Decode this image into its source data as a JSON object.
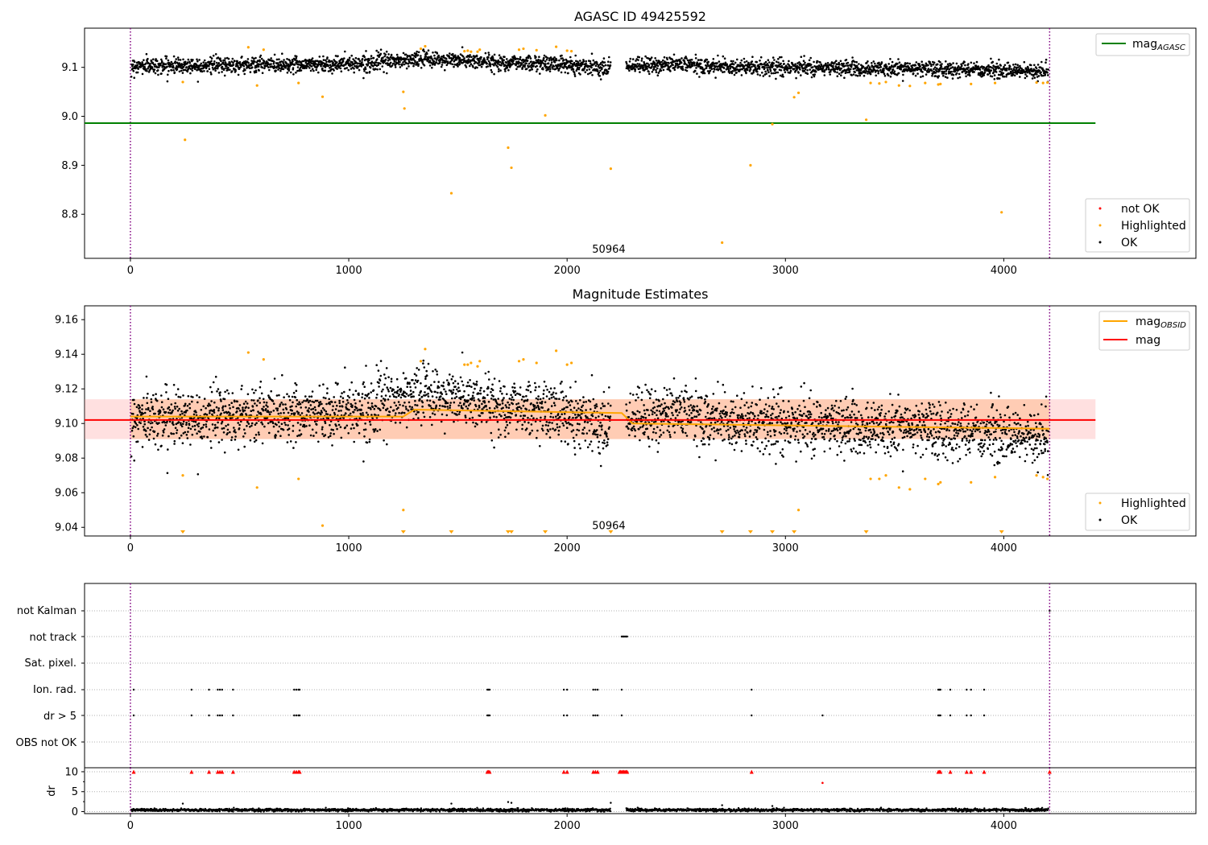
{
  "chart_data": [
    {
      "id": "top",
      "type": "scatter",
      "title": "AGASC ID 49425592",
      "xlim": [
        -210,
        4880
      ],
      "ylim": [
        8.71,
        9.18
      ],
      "xticks": [
        0,
        1000,
        2000,
        3000,
        4000
      ],
      "yticks": [
        8.8,
        8.9,
        9.0,
        9.1
      ],
      "ytick_labels": [
        "8.8",
        "8.9",
        "9.0",
        "9.1"
      ],
      "vlines": [
        0,
        4210
      ],
      "vline_color": "#800080",
      "annotation": {
        "text": "50964",
        "x": 2100,
        "y": 8.715
      },
      "lines": [
        {
          "name": "mag",
          "subscript": "AGASC",
          "y": 8.986,
          "x": [
            -210,
            4420
          ],
          "color": "#008000"
        }
      ],
      "ok_trend": {
        "x": [
          0,
          500,
          1000,
          1350,
          1600,
          1900,
          2200,
          2500,
          2800,
          3200,
          3600,
          4000,
          4210
        ],
        "y": [
          9.103,
          9.105,
          9.107,
          9.117,
          9.112,
          9.108,
          9.1,
          9.106,
          9.101,
          9.1,
          9.097,
          9.094,
          9.09
        ]
      },
      "ok_noise": 0.008,
      "ok_gap": [
        2200,
        2270
      ],
      "highlighted": {
        "x": [
          240,
          250,
          540,
          580,
          610,
          770,
          880,
          1250,
          1255,
          1330,
          1350,
          1470,
          1530,
          1545,
          1560,
          1590,
          1600,
          1730,
          1745,
          1780,
          1800,
          1860,
          1900,
          1950,
          2000,
          2020,
          2200,
          2710,
          2840,
          2940,
          3040,
          3060,
          3370,
          3390,
          3430,
          3460,
          3520,
          3570,
          3640,
          3700,
          3710,
          3850,
          3960,
          3990,
          4150,
          4180,
          4200
        ],
        "y": [
          9.07,
          8.952,
          9.141,
          9.063,
          9.136,
          9.068,
          9.04,
          9.05,
          9.016,
          9.138,
          9.143,
          8.843,
          9.133,
          9.134,
          9.132,
          9.132,
          9.136,
          8.936,
          8.895,
          9.136,
          9.138,
          9.135,
          9.002,
          9.142,
          9.134,
          9.133,
          8.893,
          8.742,
          8.9,
          8.984,
          9.039,
          9.048,
          8.993,
          9.068,
          9.067,
          9.07,
          9.063,
          9.062,
          9.068,
          9.065,
          9.066,
          9.066,
          9.068,
          8.804,
          9.069,
          9.068,
          9.069
        ],
        "color": "#ffa500"
      },
      "legend_upper": [
        {
          "label": "mag",
          "subscript": "AGASC",
          "color": "#008000",
          "kind": "line"
        }
      ],
      "legend_lower": [
        {
          "label": "not OK",
          "color": "#ff0000",
          "kind": "dot"
        },
        {
          "label": "Highlighted",
          "color": "#ffa500",
          "kind": "dot"
        },
        {
          "label": "OK",
          "color": "#000000",
          "kind": "dot"
        }
      ]
    },
    {
      "id": "middle",
      "type": "scatter",
      "title": "Magnitude Estimates",
      "xlim": [
        -210,
        4880
      ],
      "ylim": [
        9.035,
        9.168
      ],
      "xticks": [
        0,
        1000,
        2000,
        3000,
        4000
      ],
      "yticks": [
        9.04,
        9.06,
        9.08,
        9.1,
        9.12,
        9.14,
        9.16
      ],
      "ytick_labels": [
        "9.04",
        "9.06",
        "9.08",
        "9.10",
        "9.12",
        "9.14",
        "9.16"
      ],
      "vlines": [
        0,
        4210
      ],
      "vline_color": "#800080",
      "annotation": {
        "text": "50964",
        "x": 2100,
        "y": 9.037
      },
      "lines": [
        {
          "name": "mag",
          "subscript": "OBSID",
          "color": "#ffa500",
          "x": [
            0,
            1250,
            1300,
            2250,
            2300,
            4210
          ],
          "y": [
            9.104,
            9.104,
            9.108,
            9.106,
            9.1,
            9.097
          ]
        },
        {
          "name": "mag",
          "subscript": "",
          "color": "#ff0000",
          "y": 9.102,
          "x": [
            -210,
            4420
          ]
        }
      ],
      "band": {
        "x": [
          -210,
          4420
        ],
        "y0": 9.091,
        "y1": 9.114,
        "color": "#ff9999",
        "opacity": 0.3
      },
      "band_orange": {
        "x": [
          0,
          4210
        ],
        "y0": 9.091,
        "y1": 9.114,
        "color": "#ffa050",
        "opacity": 0.3
      },
      "ok_trend": {
        "x": [
          0,
          500,
          1000,
          1350,
          1600,
          1900,
          2200,
          2500,
          2800,
          3200,
          3600,
          4000,
          4210
        ],
        "y": [
          9.103,
          9.105,
          9.107,
          9.117,
          9.112,
          9.108,
          9.1,
          9.106,
          9.101,
          9.1,
          9.097,
          9.094,
          9.09
        ]
      },
      "ok_noise": 0.008,
      "ok_gap": [
        2200,
        2270
      ],
      "highlighted": {
        "x": [
          240,
          540,
          580,
          610,
          770,
          880,
          1250,
          1330,
          1350,
          1530,
          1545,
          1560,
          1590,
          1600,
          1780,
          1800,
          1860,
          1950,
          2000,
          2020,
          3060,
          3390,
          3430,
          3460,
          3520,
          3570,
          3640,
          3700,
          3710,
          3850,
          3960,
          4150,
          4180,
          4200
        ],
        "y": [
          9.07,
          9.141,
          9.063,
          9.137,
          9.068,
          9.041,
          9.05,
          9.136,
          9.143,
          9.134,
          9.134,
          9.135,
          9.133,
          9.136,
          9.136,
          9.137,
          9.135,
          9.142,
          9.134,
          9.135,
          9.05,
          9.068,
          9.068,
          9.07,
          9.063,
          9.062,
          9.068,
          9.065,
          9.066,
          9.066,
          9.069,
          9.07,
          9.069,
          9.068
        ],
        "color": "#ffa500"
      },
      "offscale_markers": {
        "x": [
          240,
          1250,
          1470,
          1730,
          1745,
          1900,
          2200,
          2710,
          2840,
          2940,
          3040,
          3370,
          3990
        ],
        "color": "#ffa500"
      },
      "legend_upper": [
        {
          "label": "mag",
          "subscript": "OBSID",
          "color": "#ffa500",
          "kind": "line"
        },
        {
          "label": "mag",
          "subscript": "",
          "color": "#ff0000",
          "kind": "line"
        }
      ],
      "legend_lower": [
        {
          "label": "Highlighted",
          "color": "#ffa500",
          "kind": "dot"
        },
        {
          "label": "OK",
          "color": "#000000",
          "kind": "dot"
        }
      ]
    },
    {
      "id": "flags",
      "type": "scatter",
      "xlim": [
        -210,
        4880
      ],
      "categories": [
        "not Kalman",
        "not track",
        "Sat. pixel.",
        "Ion. rad.",
        "dr > 5",
        "OBS not OK"
      ],
      "vlines": [
        0,
        4210
      ],
      "vline_color": "#800080",
      "flag_points": {
        "not Kalman": [
          4210
        ],
        "not track": [
          2250,
          2255,
          2260,
          2265,
          2270,
          2275
        ],
        "Sat. pixel.": [],
        "Ion. rad.": [
          15,
          280,
          360,
          400,
          410,
          420,
          470,
          750,
          760,
          770,
          775,
          1635,
          1640,
          1645,
          1985,
          2000,
          2120,
          2130,
          2140,
          2250,
          2845,
          3700,
          3705,
          3710,
          3755,
          3830,
          3850,
          3910
        ],
        "dr > 5": [
          15,
          280,
          360,
          400,
          410,
          420,
          470,
          750,
          760,
          770,
          775,
          1635,
          1640,
          1645,
          1985,
          2000,
          2120,
          2130,
          2140,
          2250,
          2845,
          3170,
          3700,
          3705,
          3710,
          3755,
          3830,
          3850,
          3910
        ],
        "OBS not OK": []
      }
    },
    {
      "id": "dr",
      "type": "scatter",
      "ylabel": "dr",
      "xlim": [
        -210,
        4880
      ],
      "ylim": [
        -0.5,
        11
      ],
      "xticks": [
        0,
        1000,
        2000,
        3000,
        4000
      ],
      "yticks": [
        0,
        5,
        10
      ],
      "ytick_labels": [
        "0",
        "5",
        "10"
      ],
      "vlines": [
        0,
        4210
      ],
      "vline_color": "#800080",
      "dr_ok_level": 0.4,
      "dr_ok_noise": 0.3,
      "dr_ok_gap": [
        2200,
        2270
      ],
      "dr_outliers": {
        "x": [
          240,
          1470,
          1730,
          1745,
          2200,
          2710,
          2940
        ],
        "y": [
          2.0,
          2.0,
          2.4,
          2.2,
          2.2,
          1.6,
          1.4
        ]
      },
      "dr_notok": {
        "x": [
          15,
          280,
          360,
          400,
          410,
          420,
          470,
          750,
          760,
          770,
          775,
          1635,
          1640,
          1645,
          1985,
          2000,
          2120,
          2130,
          2140,
          2240,
          2245,
          2250,
          2255,
          2260,
          2265,
          2270,
          2275,
          2845,
          3700,
          3705,
          3710,
          3755,
          3830,
          3850,
          3910,
          4210
        ],
        "y": [
          10,
          10,
          10,
          10,
          10,
          10,
          10,
          10,
          10,
          10,
          10,
          10,
          10,
          10,
          10,
          10,
          10,
          10,
          10,
          10,
          10,
          10,
          10,
          10,
          10,
          10,
          10,
          10,
          10,
          10,
          10,
          10,
          10,
          10,
          10,
          10
        ],
        "color": "#ff0000"
      },
      "dr_notok_single": {
        "x": [
          3170
        ],
        "y": [
          7.2
        ],
        "color": "#ff0000"
      }
    }
  ]
}
